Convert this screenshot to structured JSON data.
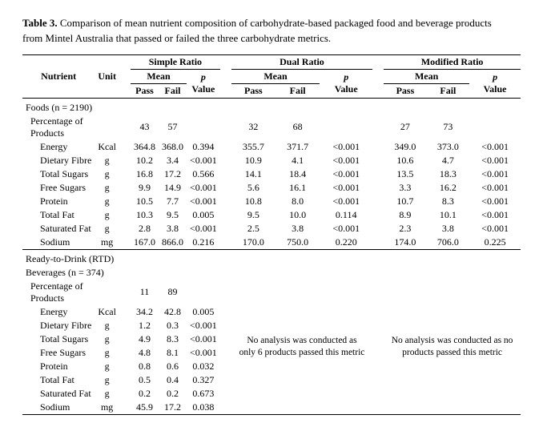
{
  "caption_label": "Table 3.",
  "caption_text": "Comparison of mean nutrient composition of carbohydrate-based packaged food and beverage products from Mintel Australia that passed or failed the three carbohydrate metrics.",
  "metrics": {
    "simple": "Simple Ratio",
    "dual": "Dual Ratio",
    "modified": "Modified Ratio"
  },
  "col_headers": {
    "nutrient": "Nutrient",
    "unit": "Unit",
    "mean": "Mean",
    "pass": "Pass",
    "fail": "Fail",
    "pvalue_1": "p",
    "pvalue_2": "Value"
  },
  "sections": {
    "foods": {
      "title": "Foods (n = 2190)",
      "pct_label": "Percentage of Products",
      "pct": {
        "simple": {
          "pass": "43",
          "fail": "57"
        },
        "dual": {
          "pass": "32",
          "fail": "68"
        },
        "mod": {
          "pass": "27",
          "fail": "73"
        }
      },
      "rows": [
        {
          "name": "Energy",
          "unit": "Kcal",
          "simple": {
            "pass": "364.8",
            "fail": "368.0",
            "p": "0.394"
          },
          "dual": {
            "pass": "355.7",
            "fail": "371.7",
            "p": "<0.001"
          },
          "mod": {
            "pass": "349.0",
            "fail": "373.0",
            "p": "<0.001"
          }
        },
        {
          "name": "Dietary Fibre",
          "unit": "g",
          "simple": {
            "pass": "10.2",
            "fail": "3.4",
            "p": "<0.001"
          },
          "dual": {
            "pass": "10.9",
            "fail": "4.1",
            "p": "<0.001"
          },
          "mod": {
            "pass": "10.6",
            "fail": "4.7",
            "p": "<0.001"
          }
        },
        {
          "name": "Total Sugars",
          "unit": "g",
          "simple": {
            "pass": "16.8",
            "fail": "17.2",
            "p": "0.566"
          },
          "dual": {
            "pass": "14.1",
            "fail": "18.4",
            "p": "<0.001"
          },
          "mod": {
            "pass": "13.5",
            "fail": "18.3",
            "p": "<0.001"
          }
        },
        {
          "name": "Free Sugars",
          "unit": "g",
          "simple": {
            "pass": "9.9",
            "fail": "14.9",
            "p": "<0.001"
          },
          "dual": {
            "pass": "5.6",
            "fail": "16.1",
            "p": "<0.001"
          },
          "mod": {
            "pass": "3.3",
            "fail": "16.2",
            "p": "<0.001"
          }
        },
        {
          "name": "Protein",
          "unit": "g",
          "simple": {
            "pass": "10.5",
            "fail": "7.7",
            "p": "<0.001"
          },
          "dual": {
            "pass": "10.8",
            "fail": "8.0",
            "p": "<0.001"
          },
          "mod": {
            "pass": "10.7",
            "fail": "8.3",
            "p": "<0.001"
          }
        },
        {
          "name": "Total Fat",
          "unit": "g",
          "simple": {
            "pass": "10.3",
            "fail": "9.5",
            "p": "0.005"
          },
          "dual": {
            "pass": "9.5",
            "fail": "10.0",
            "p": "0.114"
          },
          "mod": {
            "pass": "8.9",
            "fail": "10.1",
            "p": "<0.001"
          }
        },
        {
          "name": "Saturated Fat",
          "unit": "g",
          "simple": {
            "pass": "2.8",
            "fail": "3.8",
            "p": "<0.001"
          },
          "dual": {
            "pass": "2.5",
            "fail": "3.8",
            "p": "<0.001"
          },
          "mod": {
            "pass": "2.3",
            "fail": "3.8",
            "p": "<0.001"
          }
        },
        {
          "name": "Sodium",
          "unit": "mg",
          "simple": {
            "pass": "167.0",
            "fail": "866.0",
            "p": "0.216"
          },
          "dual": {
            "pass": "170.0",
            "fail": "750.0",
            "p": "0.220"
          },
          "mod": {
            "pass": "174.0",
            "fail": "706.0",
            "p": "0.225"
          }
        }
      ]
    },
    "rtd": {
      "title_l1": "Ready-to-Drink (RTD)",
      "title_l2": "Beverages (n = 374)",
      "pct_label": "Percentage of Products",
      "pct": {
        "simple": {
          "pass": "11",
          "fail": "89"
        }
      },
      "note_dual": "No analysis was conducted as only 6 products passed this metric",
      "note_mod": "No analysis was conducted as no products passed this metric",
      "rows": [
        {
          "name": "Energy",
          "unit": "Kcal",
          "simple": {
            "pass": "34.2",
            "fail": "42.8",
            "p": "0.005"
          }
        },
        {
          "name": "Dietary Fibre",
          "unit": "g",
          "simple": {
            "pass": "1.2",
            "fail": "0.3",
            "p": "<0.001"
          }
        },
        {
          "name": "Total Sugars",
          "unit": "g",
          "simple": {
            "pass": "4.9",
            "fail": "8.3",
            "p": "<0.001"
          }
        },
        {
          "name": "Free Sugars",
          "unit": "g",
          "simple": {
            "pass": "4.8",
            "fail": "8.1",
            "p": "<0.001"
          }
        },
        {
          "name": "Protein",
          "unit": "g",
          "simple": {
            "pass": "0.8",
            "fail": "0.6",
            "p": "0.032"
          }
        },
        {
          "name": "Total Fat",
          "unit": "g",
          "simple": {
            "pass": "0.5",
            "fail": "0.4",
            "p": "0.327"
          }
        },
        {
          "name": "Saturated Fat",
          "unit": "g",
          "simple": {
            "pass": "0.2",
            "fail": "0.2",
            "p": "0.673"
          }
        },
        {
          "name": "Sodium",
          "unit": "mg",
          "simple": {
            "pass": "45.9",
            "fail": "17.2",
            "p": "0.038"
          }
        }
      ]
    }
  }
}
